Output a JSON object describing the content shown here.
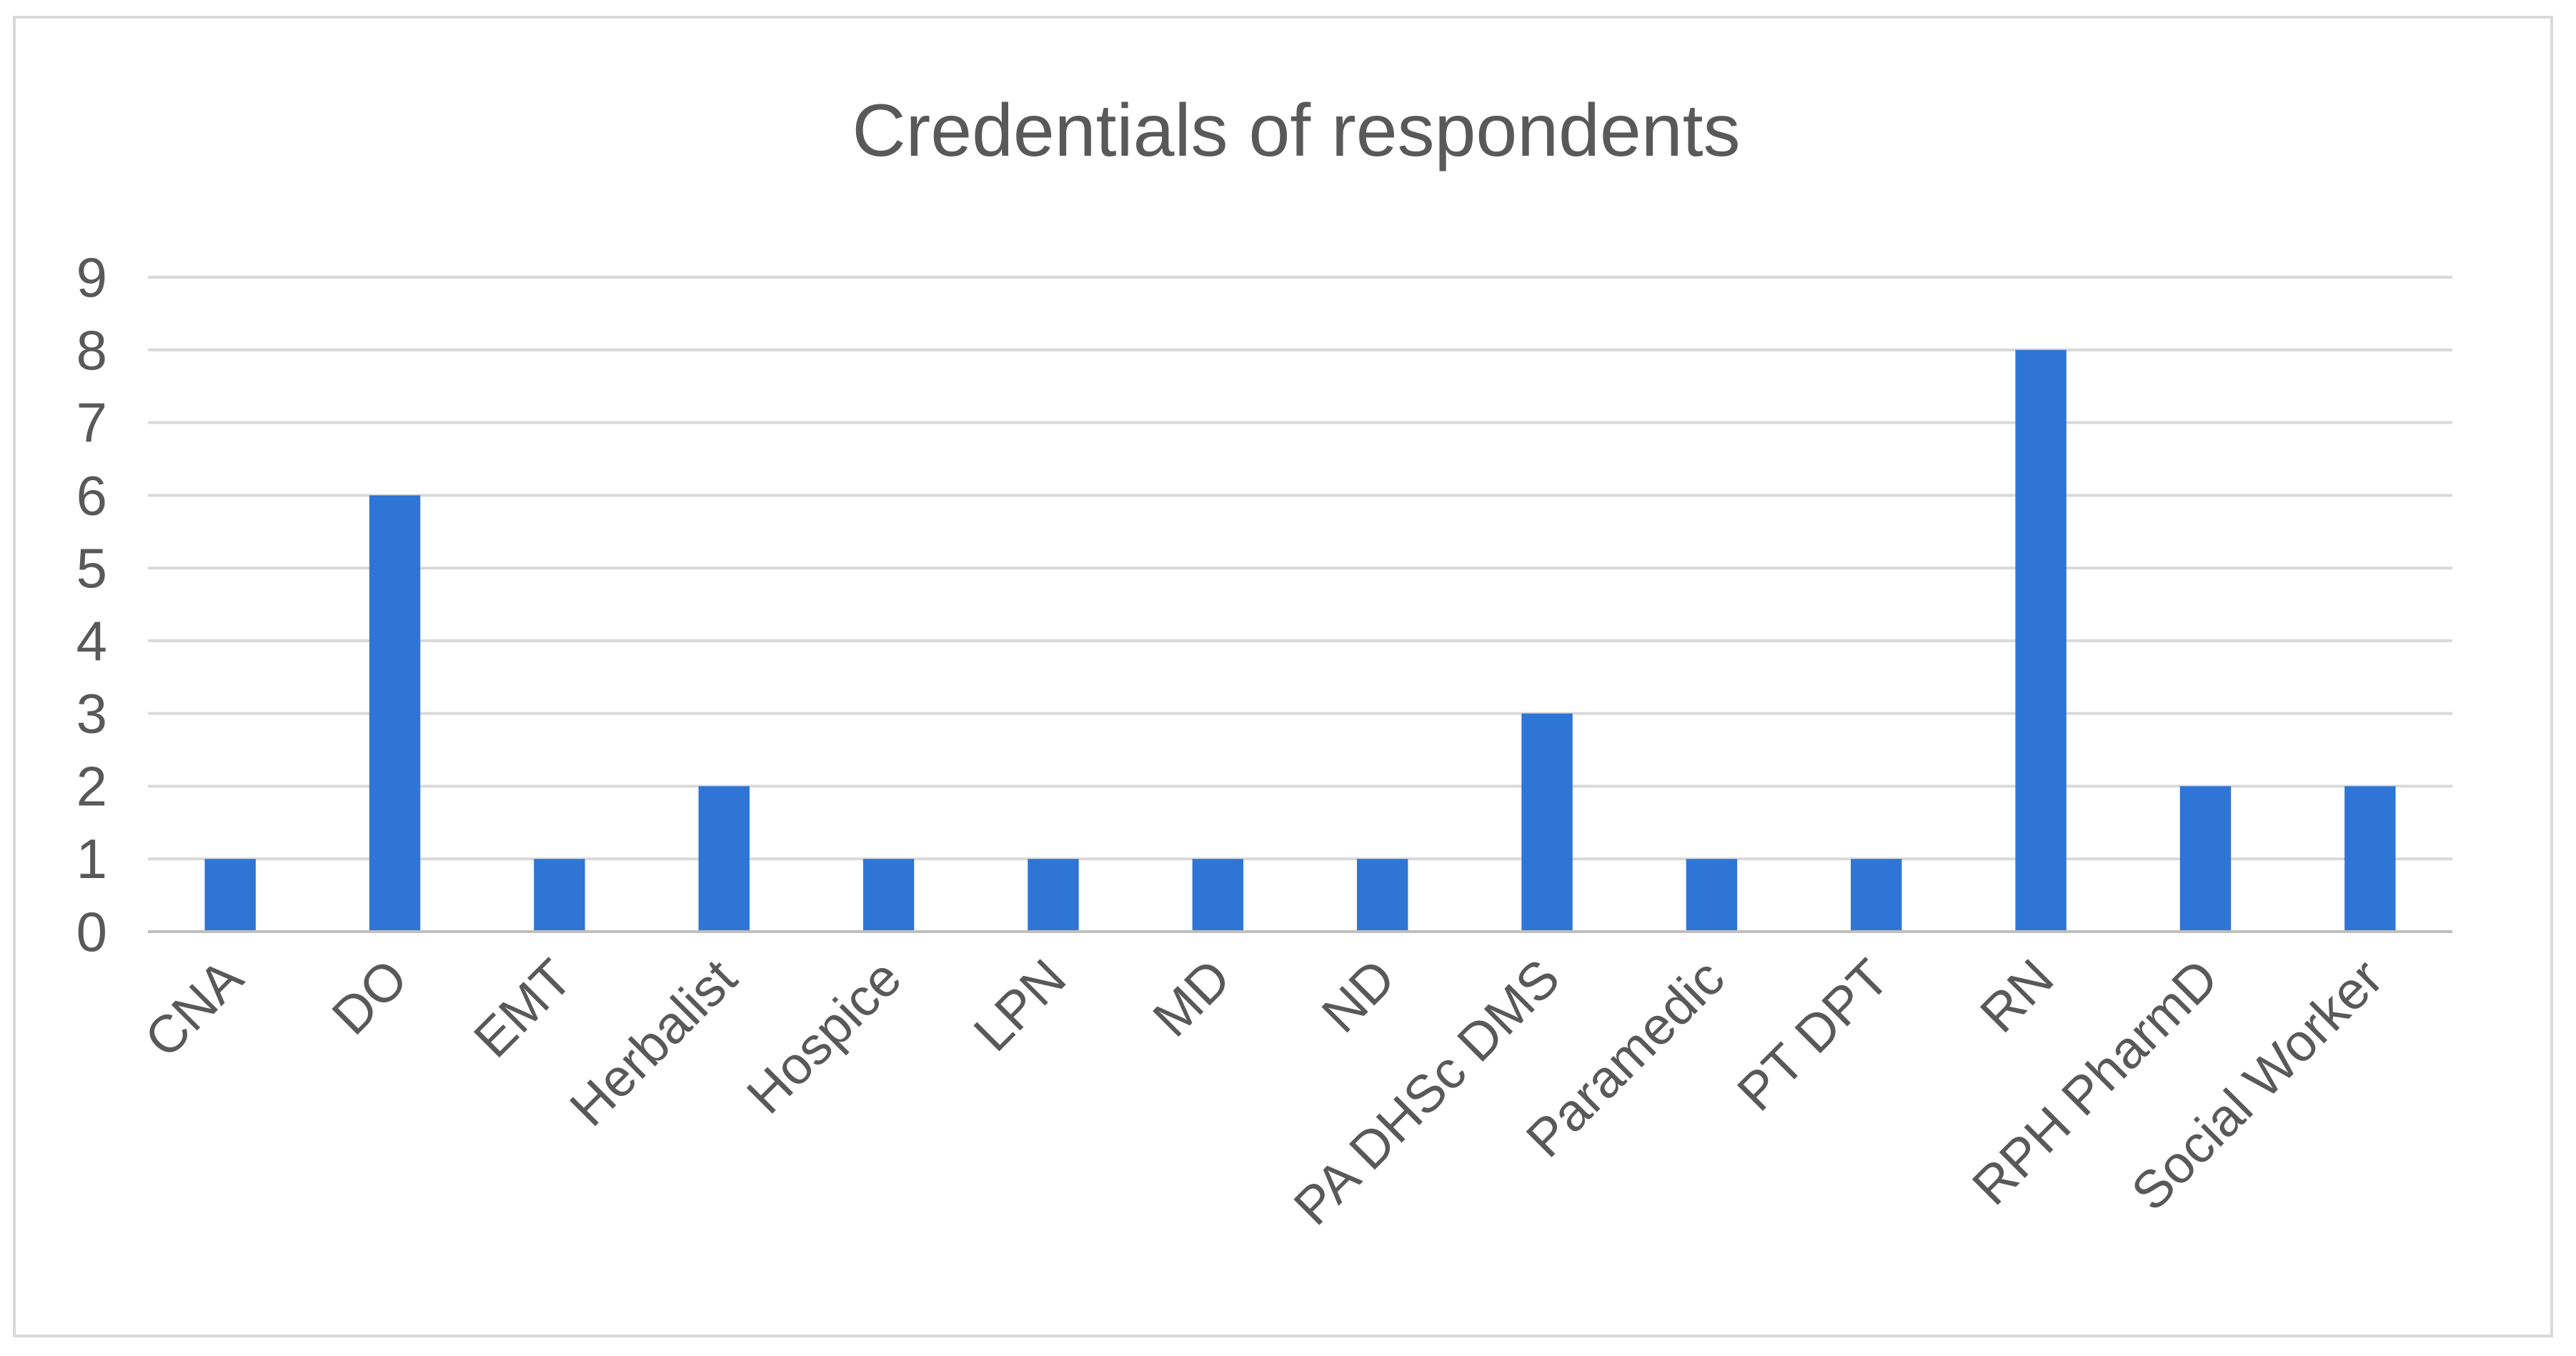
{
  "chart_data": {
    "type": "bar",
    "title": "Credentials of respondents",
    "xlabel": "",
    "ylabel": "",
    "categories": [
      "CNA",
      "DO",
      "EMT",
      "Herbalist",
      "Hospice",
      "LPN",
      "MD",
      "ND",
      "PA DHSc DMS",
      "Paramedic",
      "PT DPT",
      "RN",
      "RPH PharmD",
      "Social Worker"
    ],
    "values": [
      1,
      6,
      1,
      2,
      1,
      1,
      1,
      1,
      3,
      1,
      1,
      8,
      2,
      2
    ],
    "ylim": [
      0,
      9
    ],
    "yticks": [
      0,
      1,
      2,
      3,
      4,
      5,
      6,
      7,
      8,
      9
    ],
    "grid": true,
    "legend": "none",
    "bar_color": "#2e75d6",
    "grid_color": "#d9d9d9",
    "axis_color": "#bfbfbf",
    "text_color": "#595959"
  }
}
